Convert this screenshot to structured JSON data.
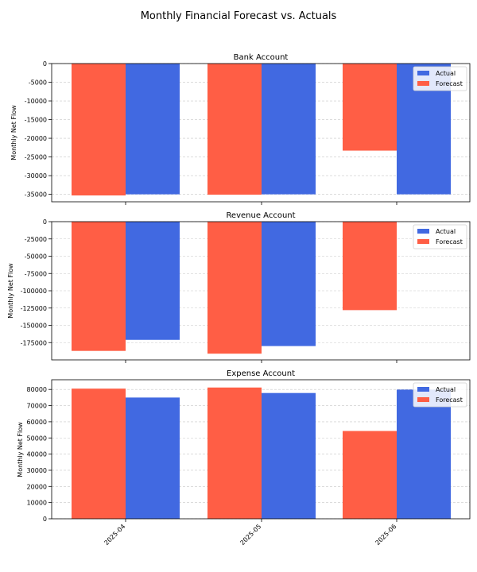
{
  "figure": {
    "title": "Monthly Financial Forecast vs. Actuals"
  },
  "chart_data": [
    {
      "type": "bar",
      "title": "Bank Account",
      "xlabel": "",
      "ylabel": "Monthly Net Flow",
      "categories": [
        "2025-04",
        "2025-05",
        "2025-06"
      ],
      "series": [
        {
          "name": "Forecast",
          "color": "#ff5e45",
          "values": [
            -35300,
            -35100,
            -23300
          ]
        },
        {
          "name": "Actual",
          "color": "#4169e1",
          "values": [
            -35000,
            -35000,
            -35000
          ]
        }
      ],
      "ylim": [
        -37000,
        0
      ],
      "yticks": [
        0,
        -5000,
        -10000,
        -15000,
        -20000,
        -25000,
        -30000,
        -35000
      ],
      "grid": "y-dashed",
      "legend": {
        "placement": "top-right",
        "entries": [
          "Actual",
          "Forecast"
        ]
      }
    },
    {
      "type": "bar",
      "title": "Revenue Account",
      "xlabel": "",
      "ylabel": "Monthly Net Flow",
      "categories": [
        "2025-04",
        "2025-05",
        "2025-06"
      ],
      "series": [
        {
          "name": "Forecast",
          "color": "#ff5e45",
          "values": [
            -187000,
            -191000,
            -128000
          ]
        },
        {
          "name": "Actual",
          "color": "#4169e1",
          "values": [
            -171000,
            -180000,
            0
          ]
        }
      ],
      "ylim": [
        -200000,
        0
      ],
      "yticks": [
        0,
        -25000,
        -50000,
        -75000,
        -100000,
        -125000,
        -150000,
        -175000
      ],
      "grid": "y-dashed",
      "legend": {
        "placement": "top-right",
        "entries": [
          "Actual",
          "Forecast"
        ]
      }
    },
    {
      "type": "bar",
      "title": "Expense Account",
      "xlabel": "",
      "ylabel": "Monthly Net Flow",
      "categories": [
        "2025-04",
        "2025-05",
        "2025-06"
      ],
      "series": [
        {
          "name": "Forecast",
          "color": "#ff5e45",
          "values": [
            80500,
            81200,
            54300
          ]
        },
        {
          "name": "Actual",
          "color": "#4169e1",
          "values": [
            75000,
            77800,
            79900
          ]
        }
      ],
      "ylim": [
        0,
        86000
      ],
      "yticks": [
        0,
        10000,
        20000,
        30000,
        40000,
        50000,
        60000,
        70000,
        80000
      ],
      "grid": "y-dashed",
      "legend": {
        "placement": "top-right",
        "entries": [
          "Actual",
          "Forecast"
        ]
      }
    }
  ]
}
